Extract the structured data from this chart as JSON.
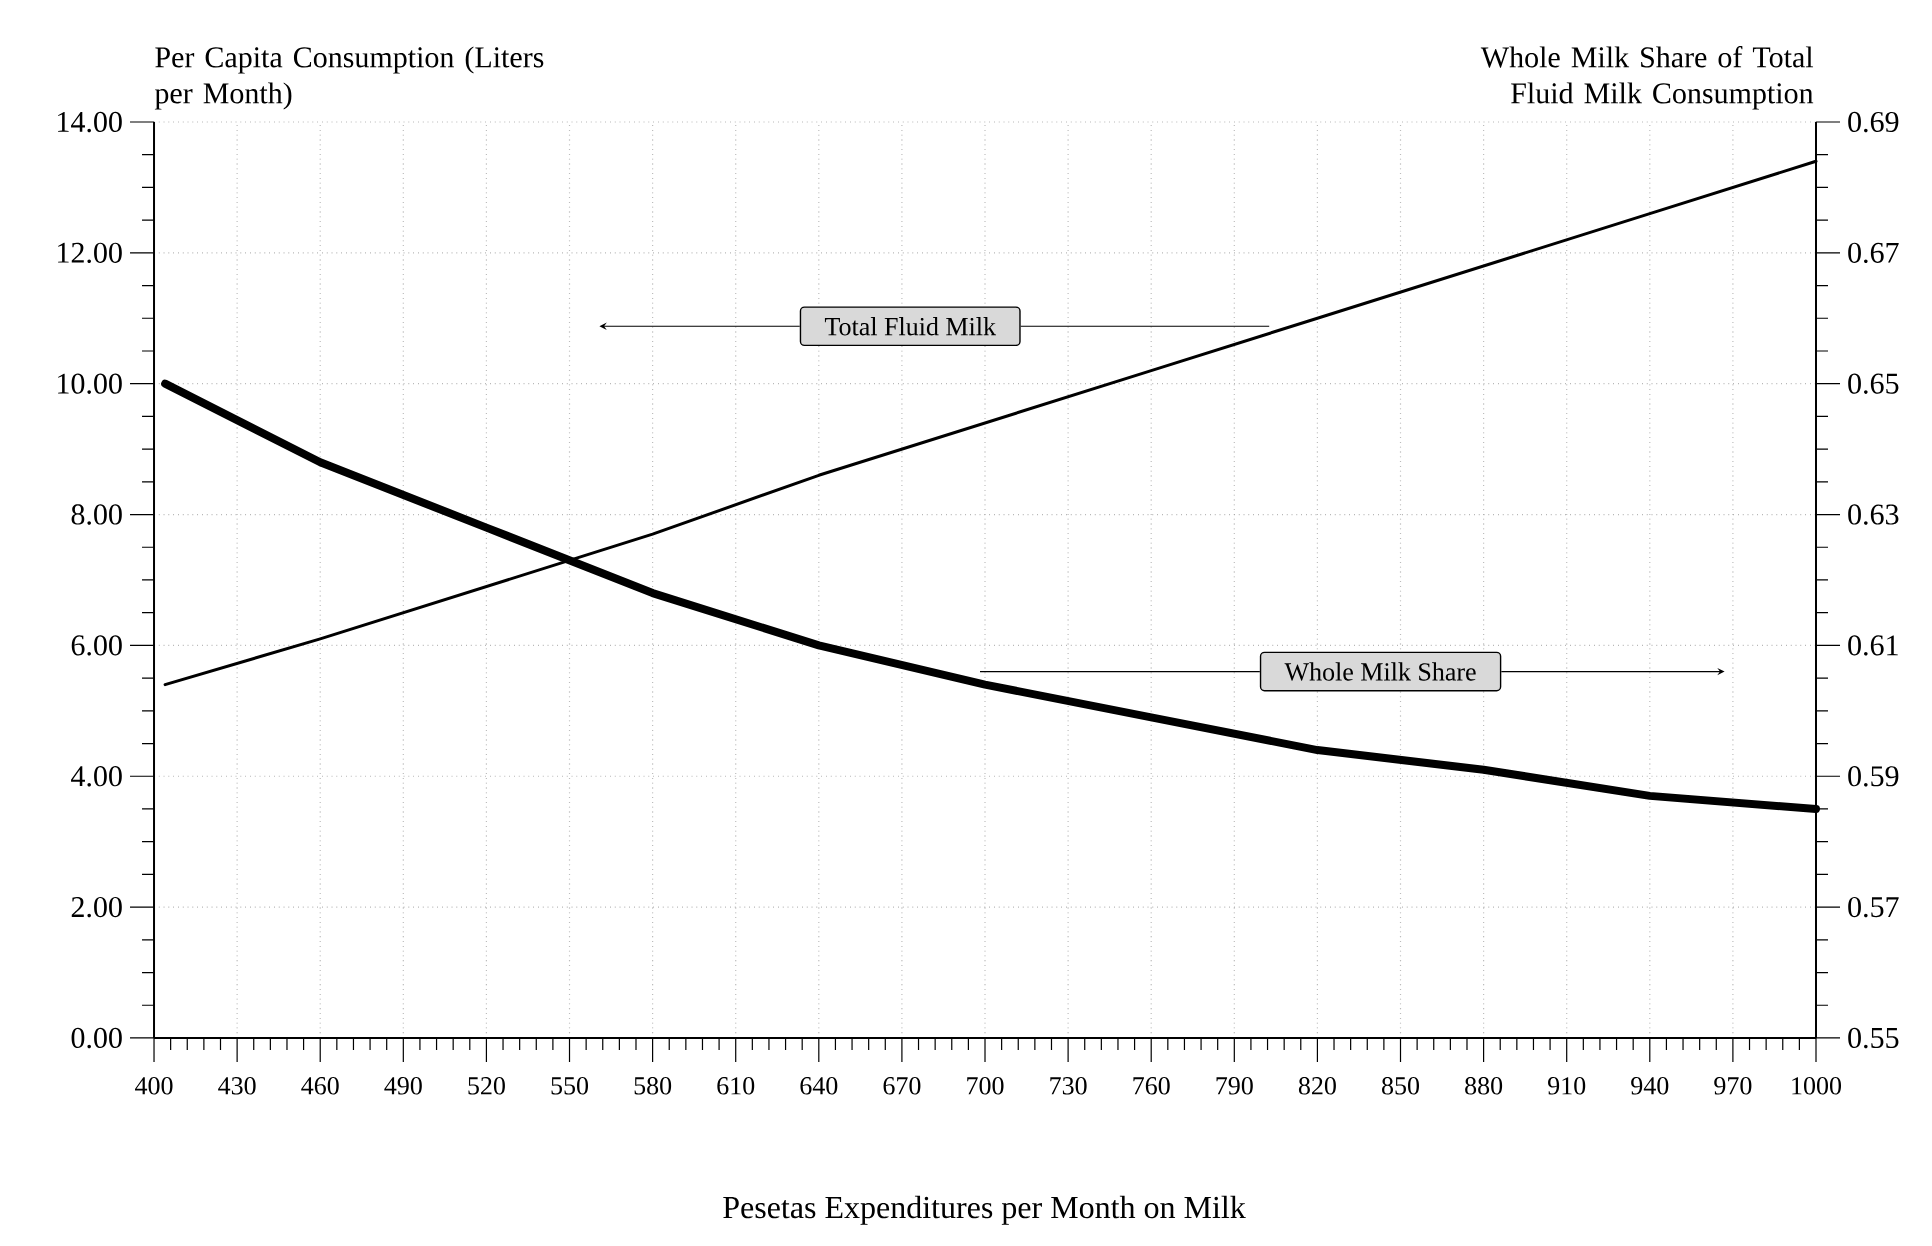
{
  "chart_data": {
    "type": "line",
    "xlabel": "Pesetas Expenditures per Month on Milk",
    "ylabel": "Per Capita Consumption (Liters per Month)",
    "y2label": "Whole Milk Share of Total Fluid Milk Consumption",
    "xlim": [
      400,
      1000
    ],
    "xticks": [
      400,
      430,
      460,
      490,
      520,
      550,
      580,
      610,
      640,
      670,
      700,
      730,
      760,
      790,
      820,
      850,
      880,
      910,
      940,
      970,
      1000
    ],
    "ylim": [
      0,
      14
    ],
    "yticks": [
      {
        "value": 0,
        "label": "0.00"
      },
      {
        "value": 2,
        "label": "2.00"
      },
      {
        "value": 4,
        "label": "4.00"
      },
      {
        "value": 6,
        "label": "6.00"
      },
      {
        "value": 8,
        "label": "8.00"
      },
      {
        "value": 10,
        "label": "10.00"
      },
      {
        "value": 12,
        "label": "12.00"
      },
      {
        "value": 14,
        "label": "14.00"
      }
    ],
    "y2lim": [
      0.55,
      0.69
    ],
    "y2ticks": [
      0.55,
      0.57,
      0.59,
      0.61,
      0.63,
      0.65,
      0.67,
      0.69
    ],
    "grid": true,
    "legend": "center",
    "series": [
      {
        "name": "Total Fluid Milk",
        "color": "#000000",
        "x": [
          404,
          460,
          520,
          580,
          640,
          700,
          760,
          820,
          880,
          940,
          1000
        ],
        "values": [
          5.4,
          6.1,
          6.9,
          7.7,
          8.6,
          9.4,
          10.2,
          11.0,
          11.8,
          12.6,
          13.4
        ]
      },
      {
        "name": "Whole Milk Share",
        "color": "#000000",
        "axis": "y2",
        "x": [
          404,
          460,
          520,
          580,
          640,
          700,
          760,
          820,
          880,
          940,
          1000
        ],
        "values": [
          0.65,
          0.638,
          0.628,
          0.618,
          0.61,
          0.604,
          0.599,
          0.594,
          0.591,
          0.587,
          0.585
        ]
      }
    ]
  }
}
